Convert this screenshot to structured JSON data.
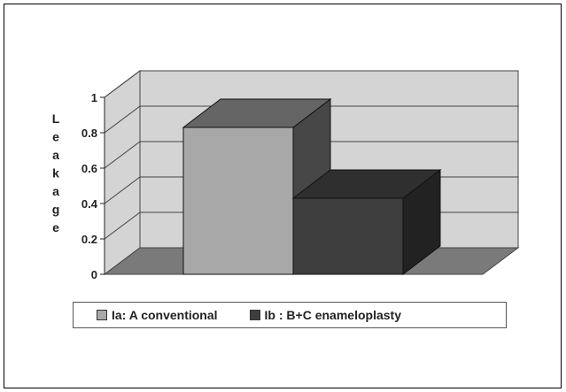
{
  "chart_data": {
    "type": "bar",
    "three_d": true,
    "title": "",
    "xlabel": "",
    "ylabel": "Leakage",
    "ylim": [
      0,
      1
    ],
    "yticks": [
      "0",
      "0.2",
      "0.4",
      "0.6",
      "0.8",
      "1"
    ],
    "grid": true,
    "legend_position": "bottom",
    "categories": [
      "Ia: A conventional",
      "Ib : B+C enameloplasty"
    ],
    "values": [
      0.83,
      0.43
    ],
    "colors": [
      "#a8a8a8",
      "#3e3e3e"
    ],
    "wall_color": "#d4d4d4",
    "floor_color": "#7a7a7a"
  },
  "legend": {
    "items": [
      {
        "label": "Ia: A conventional",
        "color": "#a8a8a8"
      },
      {
        "label": "Ib : B+C enameloplasty",
        "color": "#3e3e3e"
      }
    ]
  }
}
